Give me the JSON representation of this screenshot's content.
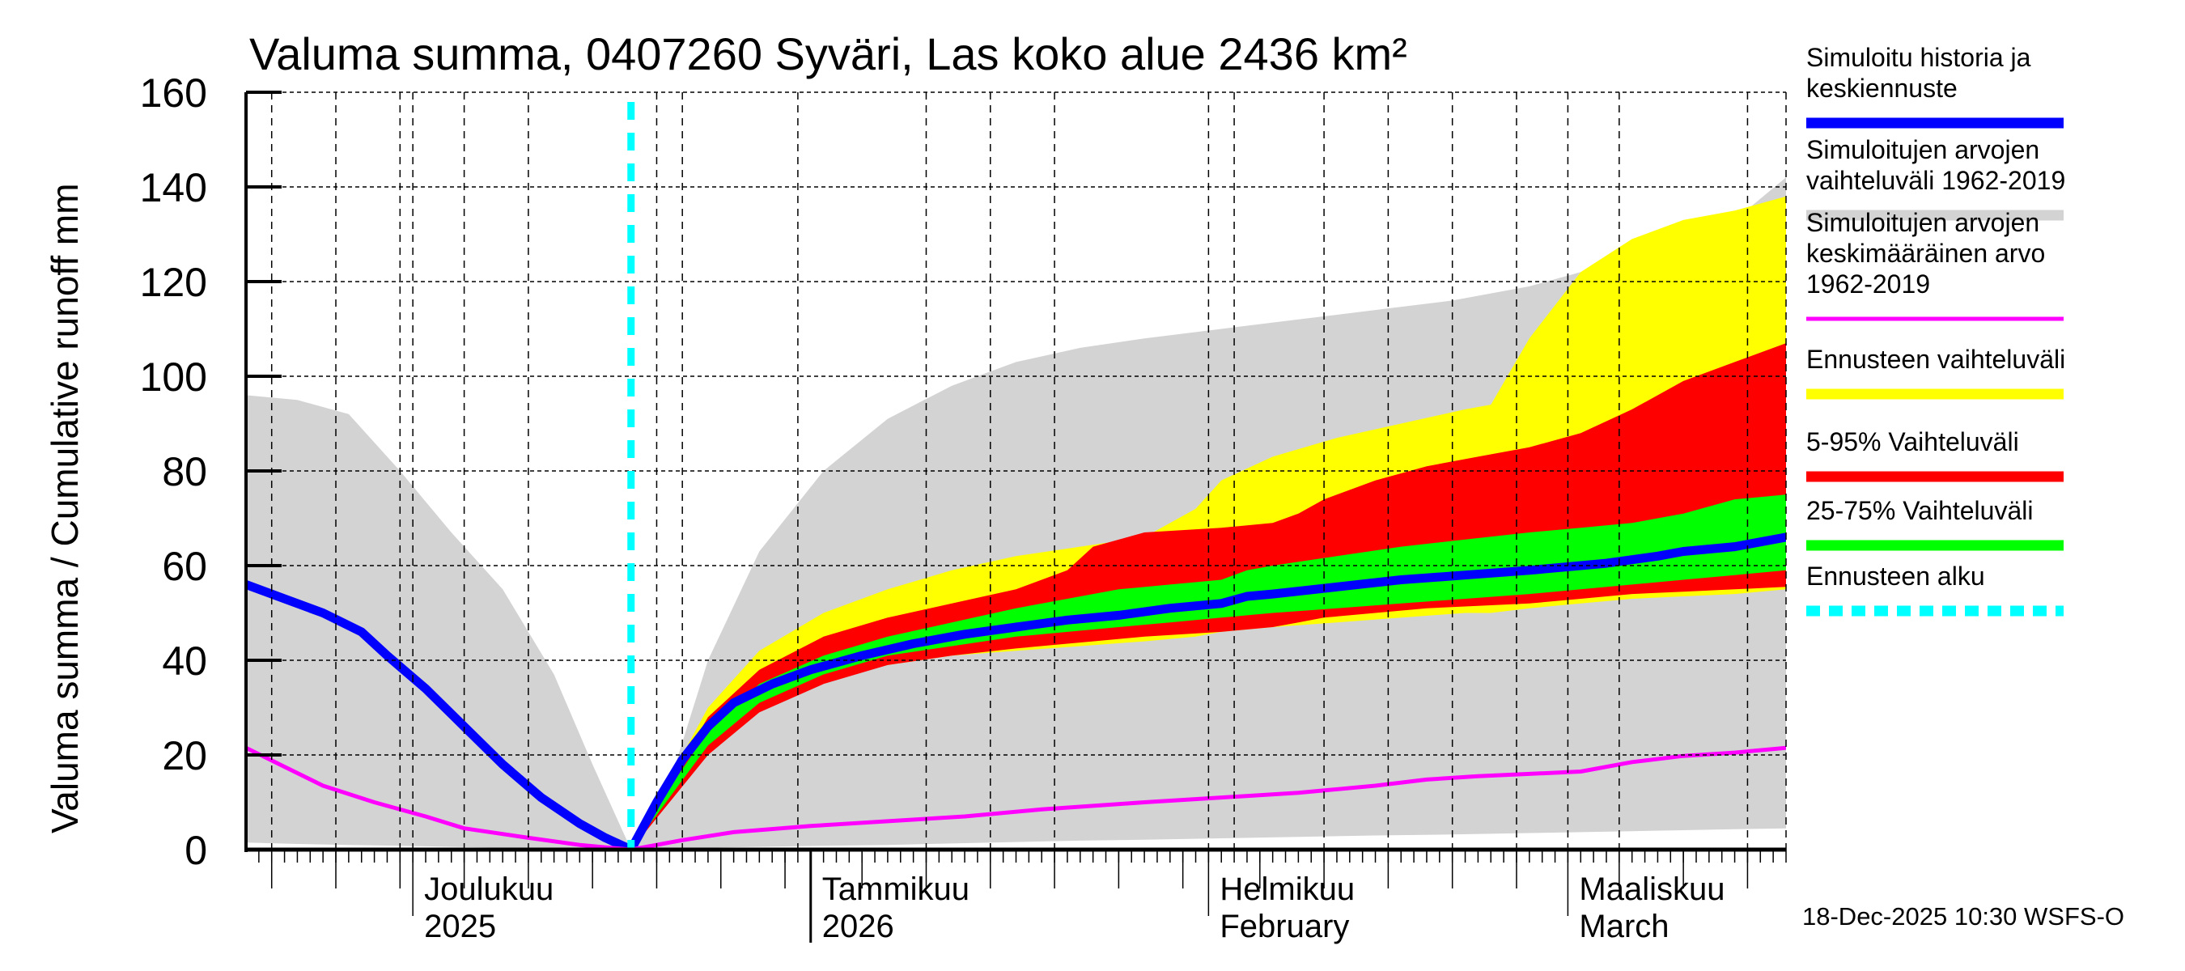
{
  "chart_data": {
    "type": "area",
    "title": "Valuma summa, 0407260 Syväri, Las koko alue 2436 km²",
    "ylabel": "Valuma summa / Cumulative runoff    mm",
    "ylim": [
      0,
      160
    ],
    "yticks": [
      0,
      20,
      40,
      60,
      80,
      100,
      120,
      140,
      160
    ],
    "x_unit": "days since 18-Nov-2025",
    "xlim": [
      0,
      120
    ],
    "grid": true,
    "legend_position": "right",
    "month_labels": [
      {
        "day": 13,
        "line1": "Joulukuu",
        "line2": "2025"
      },
      {
        "day": 44,
        "line1": "Tammikuu",
        "line2": "2026"
      },
      {
        "day": 75,
        "line1": "Helmikuu",
        "line2": "February"
      },
      {
        "day": 103,
        "line1": "Maaliskuu",
        "line2": "March"
      }
    ],
    "forecast_start_day": 30,
    "series": [
      {
        "name": "Simuloitujen arvojen vaihteluväli 1962-2019",
        "kind": "band",
        "color": "#d3d3d3",
        "x": [
          0,
          4,
          8,
          12,
          16,
          20,
          24,
          27,
          30,
          33,
          36,
          40,
          45,
          50,
          55,
          60,
          65,
          70,
          76,
          82,
          88,
          94,
          100,
          104,
          108,
          112,
          116,
          120
        ],
        "upper": [
          96,
          95,
          92,
          80,
          67,
          55,
          37,
          18,
          0,
          14,
          40,
          63,
          80,
          91,
          98,
          103,
          106,
          108,
          110,
          112,
          114,
          116,
          119,
          122,
          125,
          128,
          133,
          142
        ],
        "lower": [
          1.5,
          1.2,
          1,
          0.8,
          0.6,
          0.4,
          0.2,
          0.1,
          0,
          0.2,
          0.4,
          0.6,
          0.8,
          1,
          1.3,
          1.6,
          1.9,
          2.1,
          2.4,
          2.7,
          3,
          3.2,
          3.5,
          3.7,
          3.9,
          4.1,
          4.3,
          4.5
        ]
      },
      {
        "name": "Ennusteen vaihteluväli",
        "kind": "band",
        "color": "#ffff00",
        "x": [
          30,
          33,
          36,
          40,
          45,
          50,
          55,
          60,
          65,
          70,
          74,
          76,
          80,
          85,
          90,
          95,
          97,
          100,
          104,
          108,
          112,
          116,
          120
        ],
        "upper": [
          0,
          15,
          30,
          42,
          50,
          55,
          59,
          62,
          64,
          66,
          72,
          78,
          83,
          87,
          90,
          93,
          94,
          108,
          122,
          129,
          133,
          135,
          138
        ],
        "lower": [
          0,
          11,
          21,
          30,
          36,
          39,
          41,
          42,
          43,
          44,
          45,
          46,
          47,
          48,
          49,
          50,
          50,
          51,
          52,
          53,
          53.5,
          54,
          55
        ]
      },
      {
        "name": "5-95% Vaihteluväli",
        "kind": "band",
        "color": "#ff0000",
        "x": [
          30,
          33,
          36,
          40,
          45,
          50,
          55,
          60,
          64,
          66,
          70,
          76,
          80,
          82,
          84,
          88,
          92,
          96,
          100,
          104,
          108,
          112,
          116,
          120
        ],
        "upper": [
          0,
          14,
          28,
          38,
          45,
          49,
          52,
          55,
          59,
          64,
          67,
          68,
          69,
          71,
          74,
          78,
          81,
          83,
          85,
          88,
          93,
          99,
          103,
          107
        ],
        "lower": [
          0,
          10,
          20,
          29,
          35,
          39,
          41,
          42.5,
          43.5,
          44,
          45,
          46,
          47,
          48,
          49,
          50,
          51,
          51.5,
          52,
          53,
          54,
          54.5,
          55,
          55.5
        ]
      },
      {
        "name": "25-75% Vaihteluväli",
        "kind": "band",
        "color": "#00ff00",
        "x": [
          30,
          33,
          36,
          40,
          45,
          50,
          55,
          60,
          64,
          68,
          72,
          76,
          78,
          80,
          85,
          90,
          95,
          100,
          104,
          108,
          112,
          116,
          120
        ],
        "upper": [
          0,
          13,
          25,
          35,
          41,
          45,
          48,
          51,
          53,
          55,
          56,
          57,
          59,
          60,
          62,
          64,
          65.5,
          67,
          68,
          69,
          71,
          74,
          75
        ],
        "lower": [
          0,
          11,
          22,
          31,
          37,
          41,
          43,
          45,
          46,
          47,
          48,
          49,
          49.5,
          50,
          51,
          52,
          53,
          54,
          55,
          56,
          57,
          58,
          59
        ]
      },
      {
        "name": "Simuloitu historia ja keskiennuste",
        "kind": "line",
        "color": "#0000ff",
        "x": [
          0,
          3,
          6,
          9,
          11,
          14,
          17,
          20,
          23,
          26,
          28,
          30,
          32,
          34,
          36,
          38,
          41,
          44,
          48,
          52,
          56,
          60,
          64,
          68,
          72,
          76,
          78,
          80,
          85,
          90,
          95,
          100,
          106,
          110,
          112,
          116,
          120
        ],
        "y": [
          56,
          53,
          50,
          46,
          41,
          34,
          26,
          18,
          11,
          5.5,
          2.5,
          0,
          10,
          19,
          26,
          31,
          35,
          38,
          41,
          43.5,
          45.5,
          47,
          48.5,
          49.5,
          51,
          52,
          53.5,
          54,
          55.5,
          57,
          58,
          59,
          60.5,
          62,
          63,
          64,
          66
        ]
      },
      {
        "name": "Simuloitujen arvojen keskimääräinen arvo 1962-2019",
        "kind": "line",
        "color": "#ff00ff",
        "x": [
          0,
          3,
          6,
          10,
          14,
          17,
          22,
          26,
          30,
          34,
          38,
          44,
          50,
          56,
          62,
          70,
          76,
          82,
          88,
          92,
          96,
          100,
          104,
          108,
          112,
          116,
          120
        ],
        "y": [
          21.5,
          17.5,
          13.5,
          10,
          7,
          4.5,
          2.5,
          1,
          0,
          2,
          3.7,
          5,
          6,
          7,
          8.5,
          10,
          11,
          12,
          13.5,
          14.8,
          15.5,
          16,
          16.5,
          18.5,
          19.8,
          20.5,
          21.5
        ]
      }
    ],
    "forecast_start_line": {
      "name": "Ennusteen alku",
      "color": "#00ffff"
    }
  },
  "legend": [
    {
      "lines": [
        "Simuloitu historia ja",
        "keskiennuste"
      ],
      "color": "#0000ff",
      "style": "solid"
    },
    {
      "lines": [
        "Simuloitujen arvojen",
        "vaihteluväli 1962-2019"
      ],
      "color": "#d3d3d3",
      "style": "solid"
    },
    {
      "lines": [
        "Simuloitujen arvojen",
        "keskimääräinen arvo",
        "   1962-2019"
      ],
      "color": "#ff00ff",
      "style": "thin"
    },
    {
      "lines": [
        "Ennusteen vaihteluväli"
      ],
      "color": "#ffff00",
      "style": "solid"
    },
    {
      "lines": [
        "5-95% Vaihteluväli"
      ],
      "color": "#ff0000",
      "style": "solid"
    },
    {
      "lines": [
        "25-75% Vaihteluväli"
      ],
      "color": "#00ff00",
      "style": "solid"
    },
    {
      "lines": [
        "Ennusteen alku"
      ],
      "color": "#00ffff",
      "style": "dashed"
    }
  ],
  "footer": "18-Dec-2025 10:30 WSFS-O"
}
